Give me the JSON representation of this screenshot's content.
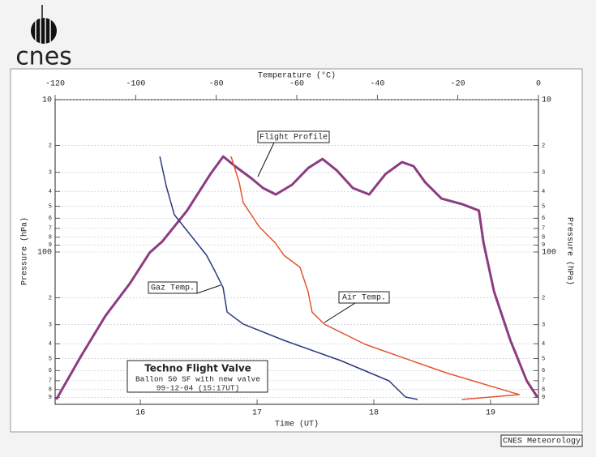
{
  "logo": "cnes",
  "footer": "CNES Meteorology",
  "chart_data": {
    "type": "line",
    "x_label": "Time  (UT)",
    "x2_label": "Temperature  (°C)",
    "y_label": "Pressure  (hPa)",
    "xlim": [
      15.27,
      19.41
    ],
    "xticks": [
      16,
      17,
      18,
      19
    ],
    "x2lim": [
      -120,
      0
    ],
    "x2ticks": [
      -120,
      -100,
      -80,
      -60,
      -40,
      -20,
      0
    ],
    "ylog": true,
    "ylim": [
      1000,
      10
    ],
    "yticks": [
      10,
      {
        "value": 20,
        "label": "2"
      },
      {
        "value": 30,
        "label": "3"
      },
      {
        "value": 40,
        "label": "4"
      },
      {
        "value": 50,
        "label": "5"
      },
      {
        "value": 60,
        "label": "6"
      },
      {
        "value": 70,
        "label": "7"
      },
      {
        "value": 80,
        "label": "8"
      },
      {
        "value": 90,
        "label": "9"
      },
      100,
      {
        "value": 200,
        "label": "2"
      },
      {
        "value": 300,
        "label": "3"
      },
      {
        "value": 400,
        "label": "4"
      },
      {
        "value": 500,
        "label": "5"
      },
      {
        "value": 600,
        "label": "6"
      },
      {
        "value": 700,
        "label": "7"
      },
      {
        "value": 800,
        "label": "8"
      },
      {
        "value": 900,
        "label": "9"
      }
    ],
    "grid": true,
    "series": [
      {
        "name": "Flight Profile",
        "color": "#8c3c80",
        "x": [
          15.28,
          15.49,
          15.7,
          15.91,
          16.08,
          16.19,
          16.4,
          16.6,
          16.71,
          16.81,
          16.95,
          17.05,
          17.16,
          17.3,
          17.44,
          17.56,
          17.68,
          17.82,
          17.96,
          18.1,
          18.24,
          18.34,
          18.44,
          18.58,
          18.76,
          18.9,
          18.94,
          19.03,
          19.17,
          19.31,
          19.4
        ],
        "values": [
          929,
          485,
          263,
          161,
          101,
          85,
          53.5,
          30.8,
          23.6,
          27.3,
          32.8,
          38.0,
          41.9,
          36.2,
          28.0,
          24.5,
          29.0,
          38.0,
          41.9,
          30.8,
          25.7,
          27.3,
          34.9,
          44.6,
          48.6,
          53.5,
          87,
          182,
          380,
          701,
          896
        ]
      },
      {
        "name": "Gaz Temp.",
        "color": "#2b3a7c",
        "axis": "x2",
        "x": [
          -94.0,
          -92.4,
          -90.4,
          -86.4,
          -82.4,
          -80.3,
          -78.3,
          -77.3,
          -73.3,
          -63.2,
          -49.1,
          -37.1,
          -33.0,
          -30.0
        ],
        "values": [
          23.6,
          37.1,
          56.9,
          77.3,
          105,
          134,
          171,
          248,
          297,
          380,
          516,
          701,
          896,
          929
        ]
      },
      {
        "name": "Air Temp.",
        "color": "#e2552e",
        "axis": "x2",
        "x": [
          -76.3,
          -74.3,
          -73.3,
          -69.3,
          -65.3,
          -63.2,
          -59.2,
          -57.2,
          -56.2,
          -53.2,
          -43.0,
          -23.0,
          -4.8,
          -19.0
        ],
        "values": [
          23.6,
          34.9,
          47.4,
          68.4,
          87.4,
          105,
          126,
          182,
          248,
          297,
          404,
          620,
          863,
          929
        ]
      }
    ],
    "annotations": [
      "Techno Flight Valve",
      "Ballon 50 SF with  new valve",
      "99-12-04  (15:17UT)"
    ]
  }
}
